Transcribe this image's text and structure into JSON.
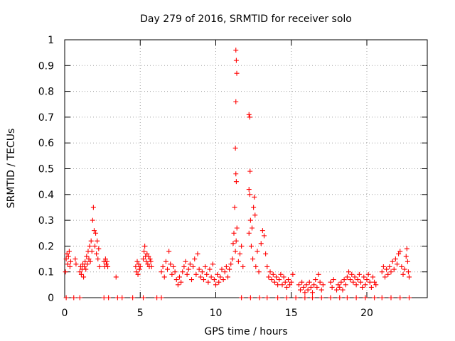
{
  "chart_data": {
    "type": "scatter",
    "title": "Day 279 of 2016, SRMTID for receiver solo",
    "xlabel": "GPS time / hours",
    "ylabel": "SRMTID / TECUs",
    "xlim": [
      0,
      24
    ],
    "ylim": [
      0,
      1
    ],
    "xticks": [
      "0",
      "5",
      "10",
      "15",
      "20"
    ],
    "yticks": [
      "0",
      "0.1",
      "0.2",
      "0.3",
      "0.4",
      "0.5",
      "0.6",
      "0.7",
      "0.8",
      "0.9",
      "1"
    ],
    "grid": true,
    "legend": "none",
    "marker": "plus",
    "color": "#ff0000",
    "series": [
      {
        "values": [
          [
            0.05,
            0.1
          ],
          [
            0.1,
            0.15
          ],
          [
            0.15,
            0.17
          ],
          [
            0.2,
            0.13
          ],
          [
            0.25,
            0.16
          ],
          [
            0.3,
            0.18
          ],
          [
            0.35,
            0.12
          ],
          [
            0.4,
            0.14
          ],
          [
            0.7,
            0.15
          ],
          [
            0.75,
            0.13
          ],
          [
            1.0,
            0.1
          ],
          [
            1.05,
            0.12
          ],
          [
            1.1,
            0.09
          ],
          [
            1.15,
            0.11
          ],
          [
            1.2,
            0.13
          ],
          [
            1.25,
            0.08
          ],
          [
            1.3,
            0.12
          ],
          [
            1.35,
            0.14
          ],
          [
            1.4,
            0.11
          ],
          [
            1.45,
            0.16
          ],
          [
            1.5,
            0.13
          ],
          [
            1.55,
            0.18
          ],
          [
            1.6,
            0.15
          ],
          [
            1.65,
            0.2
          ],
          [
            1.7,
            0.14
          ],
          [
            1.75,
            0.22
          ],
          [
            1.8,
            0.18
          ],
          [
            1.85,
            0.3
          ],
          [
            1.9,
            0.35
          ],
          [
            1.95,
            0.26
          ],
          [
            2.0,
            0.2
          ],
          [
            2.05,
            0.25
          ],
          [
            2.1,
            0.17
          ],
          [
            2.15,
            0.22
          ],
          [
            2.2,
            0.15
          ],
          [
            2.25,
            0.19
          ],
          [
            2.3,
            0.12
          ],
          [
            2.6,
            0.14
          ],
          [
            2.65,
            0.12
          ],
          [
            2.7,
            0.15
          ],
          [
            2.75,
            0.13
          ],
          [
            2.8,
            0.14
          ],
          [
            2.85,
            0.12
          ],
          [
            3.4,
            0.08
          ],
          [
            4.7,
            0.12
          ],
          [
            4.75,
            0.1
          ],
          [
            4.8,
            0.14
          ],
          [
            4.85,
            0.09
          ],
          [
            4.9,
            0.13
          ],
          [
            4.95,
            0.11
          ],
          [
            5.0,
            0.12
          ],
          [
            5.2,
            0.15
          ],
          [
            5.25,
            0.18
          ],
          [
            5.3,
            0.2
          ],
          [
            5.35,
            0.16
          ],
          [
            5.4,
            0.14
          ],
          [
            5.45,
            0.17
          ],
          [
            5.5,
            0.13
          ],
          [
            5.55,
            0.16
          ],
          [
            5.6,
            0.12
          ],
          [
            5.65,
            0.15
          ],
          [
            5.7,
            0.14
          ],
          [
            5.75,
            0.12
          ],
          [
            6.4,
            0.1
          ],
          [
            6.5,
            0.12
          ],
          [
            6.6,
            0.08
          ],
          [
            6.7,
            0.14
          ],
          [
            6.8,
            0.11
          ],
          [
            6.9,
            0.18
          ],
          [
            7.0,
            0.13
          ],
          [
            7.1,
            0.09
          ],
          [
            7.2,
            0.12
          ],
          [
            7.3,
            0.1
          ],
          [
            7.4,
            0.07
          ],
          [
            7.5,
            0.05
          ],
          [
            7.6,
            0.08
          ],
          [
            7.7,
            0.06
          ],
          [
            7.8,
            0.1
          ],
          [
            7.9,
            0.12
          ],
          [
            8.0,
            0.14
          ],
          [
            8.1,
            0.09
          ],
          [
            8.2,
            0.11
          ],
          [
            8.3,
            0.13
          ],
          [
            8.4,
            0.07
          ],
          [
            8.5,
            0.12
          ],
          [
            8.6,
            0.15
          ],
          [
            8.7,
            0.09
          ],
          [
            8.8,
            0.17
          ],
          [
            8.9,
            0.11
          ],
          [
            9.0,
            0.08
          ],
          [
            9.1,
            0.1
          ],
          [
            9.2,
            0.07
          ],
          [
            9.3,
            0.12
          ],
          [
            9.4,
            0.09
          ],
          [
            9.5,
            0.06
          ],
          [
            9.6,
            0.11
          ],
          [
            9.7,
            0.08
          ],
          [
            9.8,
            0.13
          ],
          [
            9.9,
            0.07
          ],
          [
            10.0,
            0.05
          ],
          [
            10.1,
            0.09
          ],
          [
            10.2,
            0.06
          ],
          [
            10.3,
            0.08
          ],
          [
            10.4,
            0.11
          ],
          [
            10.5,
            0.07
          ],
          [
            10.6,
            0.1
          ],
          [
            10.7,
            0.12
          ],
          [
            10.8,
            0.08
          ],
          [
            10.9,
            0.11
          ],
          [
            11.0,
            0.13
          ],
          [
            11.1,
            0.15
          ],
          [
            11.15,
            0.21
          ],
          [
            11.2,
            0.25
          ],
          [
            11.25,
            0.35
          ],
          [
            11.3,
            0.18
          ],
          [
            11.35,
            0.22
          ],
          [
            11.4,
            0.27
          ],
          [
            11.5,
            0.14
          ],
          [
            11.6,
            0.17
          ],
          [
            11.7,
            0.2
          ],
          [
            11.8,
            0.12
          ],
          [
            11.33,
            0.96
          ],
          [
            11.36,
            0.92
          ],
          [
            11.39,
            0.87
          ],
          [
            11.33,
            0.76
          ],
          [
            11.3,
            0.58
          ],
          [
            11.33,
            0.48
          ],
          [
            11.36,
            0.45
          ],
          [
            12.2,
            0.71
          ],
          [
            12.25,
            0.7
          ],
          [
            12.27,
            0.49
          ],
          [
            12.2,
            0.42
          ],
          [
            12.25,
            0.4
          ],
          [
            12.3,
            0.3
          ],
          [
            12.2,
            0.25
          ],
          [
            12.35,
            0.2
          ],
          [
            12.4,
            0.27
          ],
          [
            12.5,
            0.35
          ],
          [
            12.55,
            0.39
          ],
          [
            12.6,
            0.32
          ],
          [
            12.45,
            0.15
          ],
          [
            12.65,
            0.12
          ],
          [
            12.75,
            0.18
          ],
          [
            12.85,
            0.1
          ],
          [
            13.0,
            0.21
          ],
          [
            13.1,
            0.26
          ],
          [
            13.2,
            0.24
          ],
          [
            13.3,
            0.17
          ],
          [
            13.4,
            0.12
          ],
          [
            13.5,
            0.08
          ],
          [
            13.6,
            0.1
          ],
          [
            13.7,
            0.07
          ],
          [
            13.8,
            0.09
          ],
          [
            13.9,
            0.06
          ],
          [
            14.0,
            0.08
          ],
          [
            14.1,
            0.05
          ],
          [
            14.2,
            0.07
          ],
          [
            14.3,
            0.09
          ],
          [
            14.4,
            0.05
          ],
          [
            14.5,
            0.08
          ],
          [
            14.6,
            0.06
          ],
          [
            14.7,
            0.04
          ],
          [
            14.8,
            0.07
          ],
          [
            14.9,
            0.05
          ],
          [
            15.0,
            0.06
          ],
          [
            15.1,
            0.09
          ],
          [
            15.5,
            0.05
          ],
          [
            15.6,
            0.03
          ],
          [
            15.7,
            0.06
          ],
          [
            15.8,
            0.04
          ],
          [
            15.9,
            0.02
          ],
          [
            16.0,
            0.05
          ],
          [
            16.1,
            0.03
          ],
          [
            16.2,
            0.06
          ],
          [
            16.3,
            0.04
          ],
          [
            16.4,
            0.02
          ],
          [
            16.5,
            0.05
          ],
          [
            16.6,
            0.07
          ],
          [
            16.7,
            0.04
          ],
          [
            16.8,
            0.09
          ],
          [
            16.9,
            0.06
          ],
          [
            17.0,
            0.03
          ],
          [
            17.1,
            0.05
          ],
          [
            17.6,
            0.06
          ],
          [
            17.7,
            0.04
          ],
          [
            17.8,
            0.07
          ],
          [
            18.0,
            0.03
          ],
          [
            18.1,
            0.05
          ],
          [
            18.2,
            0.04
          ],
          [
            18.3,
            0.06
          ],
          [
            18.4,
            0.03
          ],
          [
            18.5,
            0.07
          ],
          [
            18.6,
            0.05
          ],
          [
            18.7,
            0.08
          ],
          [
            18.8,
            0.1
          ],
          [
            18.9,
            0.07
          ],
          [
            19.0,
            0.09
          ],
          [
            19.1,
            0.06
          ],
          [
            19.2,
            0.08
          ],
          [
            19.3,
            0.05
          ],
          [
            19.4,
            0.07
          ],
          [
            19.5,
            0.09
          ],
          [
            19.6,
            0.06
          ],
          [
            19.7,
            0.04
          ],
          [
            19.8,
            0.08
          ],
          [
            19.9,
            0.05
          ],
          [
            20.0,
            0.07
          ],
          [
            20.1,
            0.09
          ],
          [
            20.2,
            0.06
          ],
          [
            20.3,
            0.04
          ],
          [
            20.4,
            0.08
          ],
          [
            20.5,
            0.06
          ],
          [
            20.6,
            0.05
          ],
          [
            21.0,
            0.1
          ],
          [
            21.1,
            0.12
          ],
          [
            21.2,
            0.08
          ],
          [
            21.3,
            0.11
          ],
          [
            21.4,
            0.09
          ],
          [
            21.5,
            0.12
          ],
          [
            21.6,
            0.1
          ],
          [
            21.7,
            0.14
          ],
          [
            21.8,
            0.11
          ],
          [
            21.9,
            0.15
          ],
          [
            22.0,
            0.13
          ],
          [
            22.1,
            0.17
          ],
          [
            22.2,
            0.18
          ],
          [
            22.3,
            0.12
          ],
          [
            22.4,
            0.09
          ],
          [
            22.5,
            0.11
          ],
          [
            22.6,
            0.16
          ],
          [
            22.65,
            0.19
          ],
          [
            22.7,
            0.14
          ],
          [
            22.75,
            0.1
          ],
          [
            22.8,
            0.08
          ],
          [
            0.1,
            0.0
          ],
          [
            0.6,
            0.0
          ],
          [
            1.0,
            0.0
          ],
          [
            2.6,
            0.0
          ],
          [
            2.9,
            0.0
          ],
          [
            3.5,
            0.0
          ],
          [
            3.8,
            0.0
          ],
          [
            4.5,
            0.0
          ],
          [
            5.2,
            0.0
          ],
          [
            6.1,
            0.0
          ],
          [
            6.4,
            0.0
          ],
          [
            11.7,
            0.0
          ],
          [
            12.3,
            0.0
          ],
          [
            12.9,
            0.0
          ],
          [
            13.4,
            0.0
          ],
          [
            14.1,
            0.0
          ],
          [
            14.7,
            0.0
          ],
          [
            15.3,
            0.0
          ],
          [
            15.9,
            0.0
          ],
          [
            16.4,
            0.0
          ],
          [
            17.0,
            0.0
          ],
          [
            17.6,
            0.0
          ],
          [
            18.2,
            0.0
          ],
          [
            18.7,
            0.0
          ],
          [
            19.3,
            0.0
          ],
          [
            19.9,
            0.0
          ],
          [
            20.5,
            0.0
          ],
          [
            21.0,
            0.0
          ],
          [
            21.6,
            0.0
          ],
          [
            22.2,
            0.0
          ],
          [
            22.8,
            0.0
          ]
        ]
      }
    ]
  }
}
